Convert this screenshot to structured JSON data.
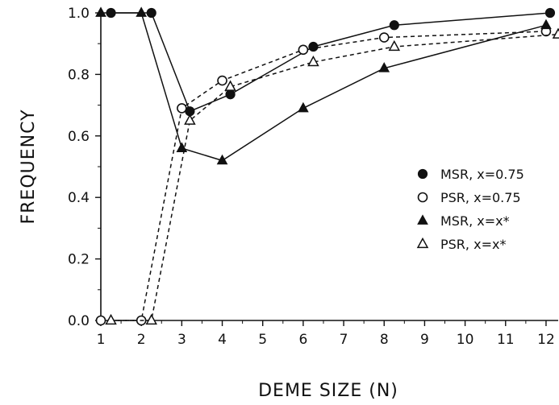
{
  "chart_data": {
    "type": "line",
    "xlabel": "DEME SIZE (N)",
    "ylabel": "FREQUENCY",
    "xlim": [
      1,
      12.3
    ],
    "ylim": [
      0,
      1.0
    ],
    "xticks": [
      "1",
      "2",
      "3",
      "4",
      "5",
      "6",
      "7",
      "8",
      "9",
      "10",
      "11",
      "12"
    ],
    "yticks": [
      "0.0",
      "0.2",
      "0.4",
      "0.6",
      "0.8",
      "1.0"
    ],
    "grid": false,
    "legend_position": "right",
    "series": [
      {
        "name": "MSR, x=0.75",
        "marker": "filled-circle",
        "line": "solid",
        "points": [
          [
            1.25,
            1.0
          ],
          [
            2.25,
            1.0
          ],
          [
            3.2,
            0.68
          ],
          [
            4.2,
            0.735
          ],
          [
            6.25,
            0.89
          ],
          [
            8.25,
            0.96
          ],
          [
            12.1,
            1.0
          ]
        ]
      },
      {
        "name": "PSR, x=0.75",
        "marker": "open-circle",
        "line": "dashed",
        "points": [
          [
            1.0,
            0.0
          ],
          [
            2.0,
            0.0
          ],
          [
            3.0,
            0.69
          ],
          [
            4.0,
            0.78
          ],
          [
            6.0,
            0.88
          ],
          [
            8.0,
            0.92
          ],
          [
            12.0,
            0.94
          ]
        ]
      },
      {
        "name": "MSR, x=x*",
        "marker": "filled-triangle",
        "line": "solid",
        "points": [
          [
            1.0,
            1.0
          ],
          [
            2.0,
            1.0
          ],
          [
            3.0,
            0.56
          ],
          [
            4.0,
            0.52
          ],
          [
            6.0,
            0.69
          ],
          [
            8.0,
            0.82
          ],
          [
            12.0,
            0.96
          ]
        ]
      },
      {
        "name": "PSR, x=x*",
        "marker": "open-triangle",
        "line": "dashed",
        "points": [
          [
            1.25,
            0.0
          ],
          [
            2.25,
            0.0
          ],
          [
            3.2,
            0.65
          ],
          [
            4.2,
            0.76
          ],
          [
            6.25,
            0.84
          ],
          [
            8.25,
            0.89
          ],
          [
            12.3,
            0.93
          ]
        ]
      }
    ],
    "legend": [
      {
        "label": "MSR, x=0.75",
        "marker": "filled-circle"
      },
      {
        "label": "PSR, x=0.75",
        "marker": "open-circle"
      },
      {
        "label": "MSR, x=x*",
        "marker": "filled-triangle"
      },
      {
        "label": "PSR, x=x*",
        "marker": "open-triangle"
      }
    ]
  }
}
